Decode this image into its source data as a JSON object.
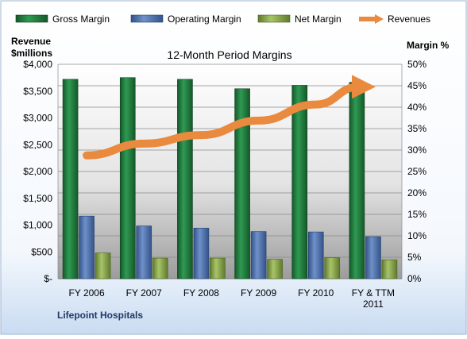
{
  "chart_data": {
    "type": "bar",
    "title": "12-Month Period Margins",
    "company": "Lifepoint Hospitals",
    "ylabel_left": [
      "Revenue",
      "$millions"
    ],
    "ylabel_right": "Margin %",
    "categories": [
      [
        "FY 2006"
      ],
      [
        "FY 2007"
      ],
      [
        "FY 2008"
      ],
      [
        "FY 2009"
      ],
      [
        "FY 2010"
      ],
      [
        "FY & TTM",
        "2011"
      ]
    ],
    "ylim_left": [
      0,
      4000
    ],
    "ylim_right": [
      0,
      50
    ],
    "left_ticks": [
      "$-",
      "$500",
      "$1,000",
      "$1,500",
      "$2,000",
      "$2,500",
      "$3,000",
      "$3,500",
      "$4,000"
    ],
    "right_ticks": [
      "0%",
      "5%",
      "10%",
      "15%",
      "20%",
      "25%",
      "30%",
      "35%",
      "40%",
      "45%",
      "50%"
    ],
    "grid": true,
    "legend_position": "top",
    "series": [
      {
        "name": "Gross Margin",
        "axis": "right",
        "color": "#1e7a3c",
        "values": [
          46.5,
          46.9,
          46.5,
          44.3,
          45.1,
          45.8
        ]
      },
      {
        "name": "Operating Margin",
        "axis": "right",
        "color": "#4a6fae",
        "values": [
          14.6,
          12.3,
          11.8,
          11.0,
          10.9,
          9.8
        ]
      },
      {
        "name": "Net Margin",
        "axis": "right",
        "color": "#8aa84a",
        "values": [
          6.0,
          4.8,
          4.8,
          4.5,
          4.9,
          4.4
        ]
      },
      {
        "name": "Revenues",
        "axis": "left",
        "type": "line",
        "color": "#e98a3f",
        "values": [
          2300,
          2520,
          2680,
          2950,
          3250,
          3580
        ]
      }
    ]
  }
}
